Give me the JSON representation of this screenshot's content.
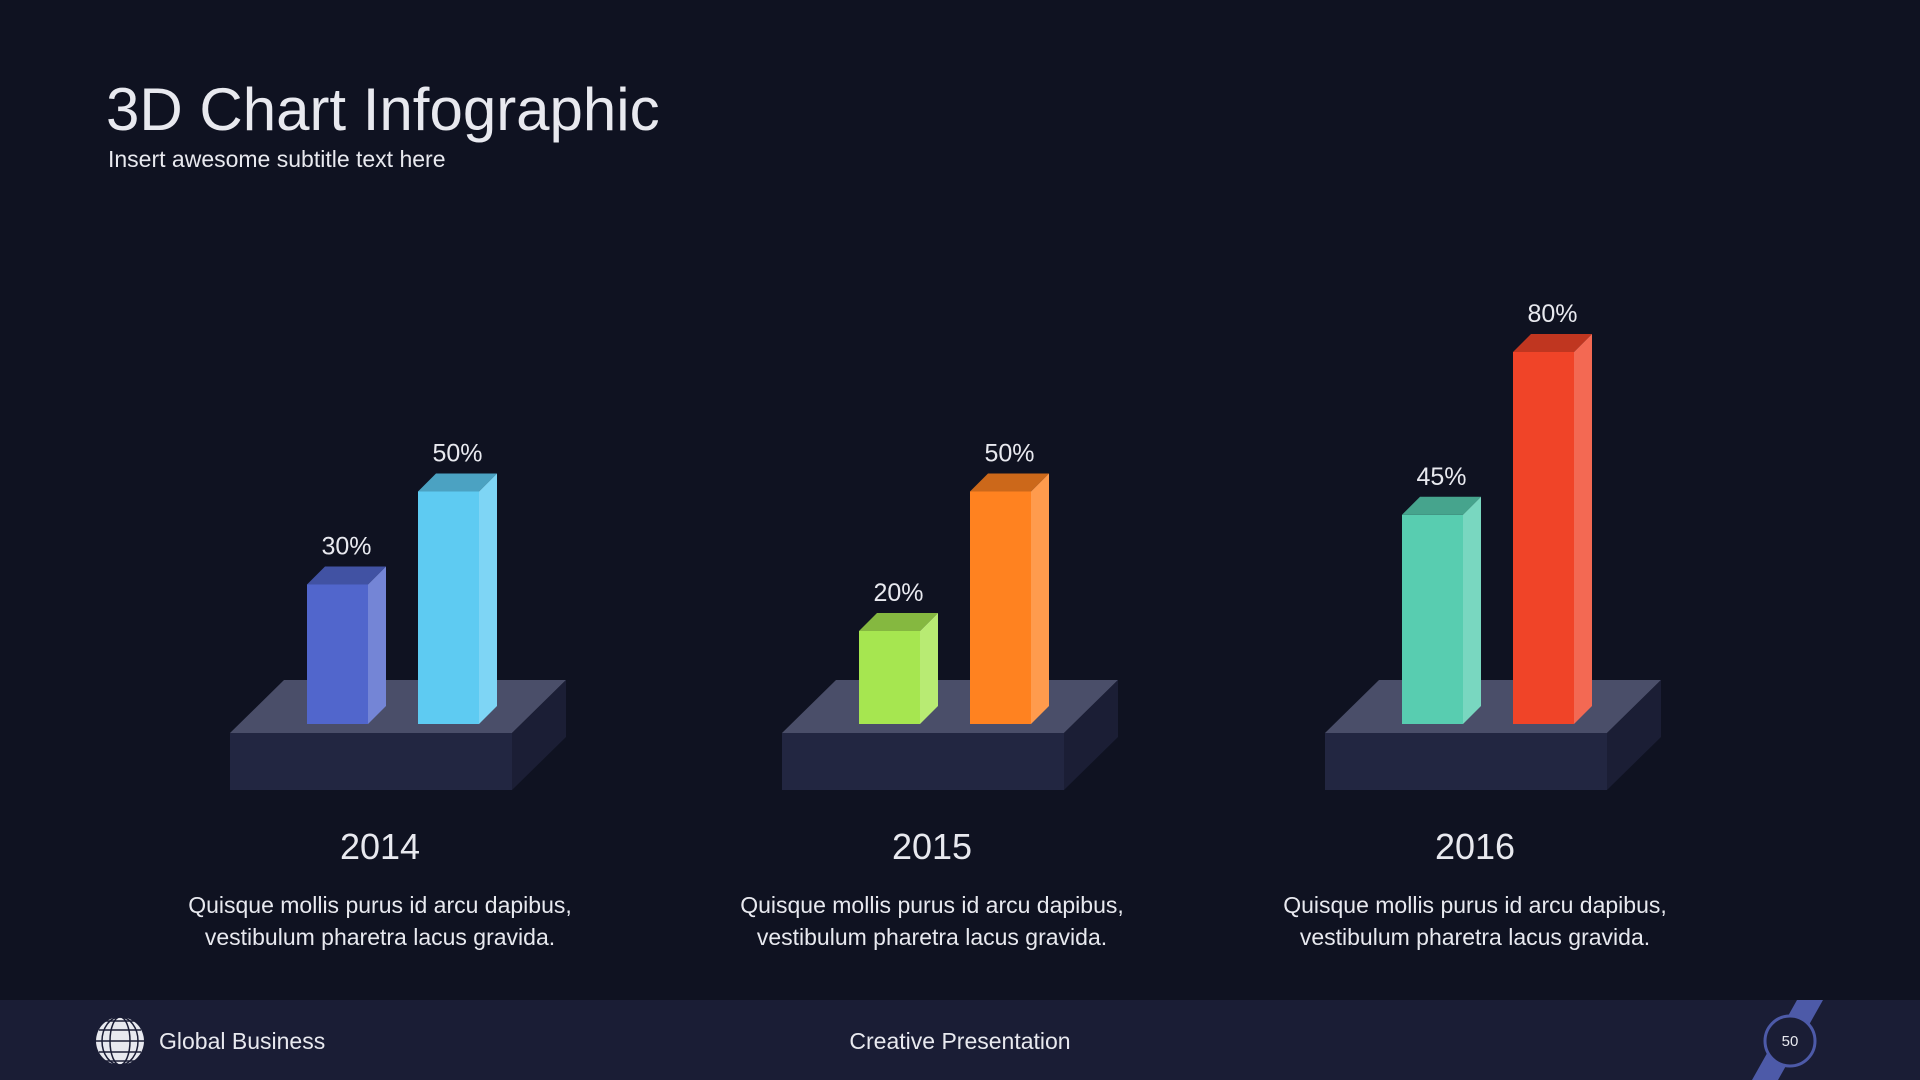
{
  "header": {
    "title": "3D Chart Infographic",
    "subtitle": "Insert awesome subtitle text here"
  },
  "chart_data": [
    {
      "type": "bar3d",
      "title": "2014",
      "values": [
        30,
        50
      ],
      "value_labels": [
        "30%",
        "50%"
      ],
      "colors": [
        "#5166cc",
        "#5ecbf2"
      ],
      "description": [
        "Quisque mollis purus id arcu dapibus,",
        "vestibulum pharetra lacus gravida."
      ]
    },
    {
      "type": "bar3d",
      "title": "2015",
      "values": [
        20,
        50
      ],
      "value_labels": [
        "20%",
        "50%"
      ],
      "colors": [
        "#a6e650",
        "#ff8220"
      ],
      "description": [
        "Quisque mollis purus id arcu dapibus,",
        "vestibulum pharetra lacus gravida."
      ]
    },
    {
      "type": "bar3d",
      "title": "2016",
      "values": [
        45,
        80
      ],
      "value_labels": [
        "45%",
        "80%"
      ],
      "colors": [
        "#58cdb0",
        "#f04428"
      ],
      "description": [
        "Quisque mollis purus id arcu dapibus,",
        "vestibulum pharetra lacus gravida."
      ]
    }
  ],
  "footer": {
    "brand": "Global Business",
    "center": "Creative Presentation",
    "page": "50"
  }
}
